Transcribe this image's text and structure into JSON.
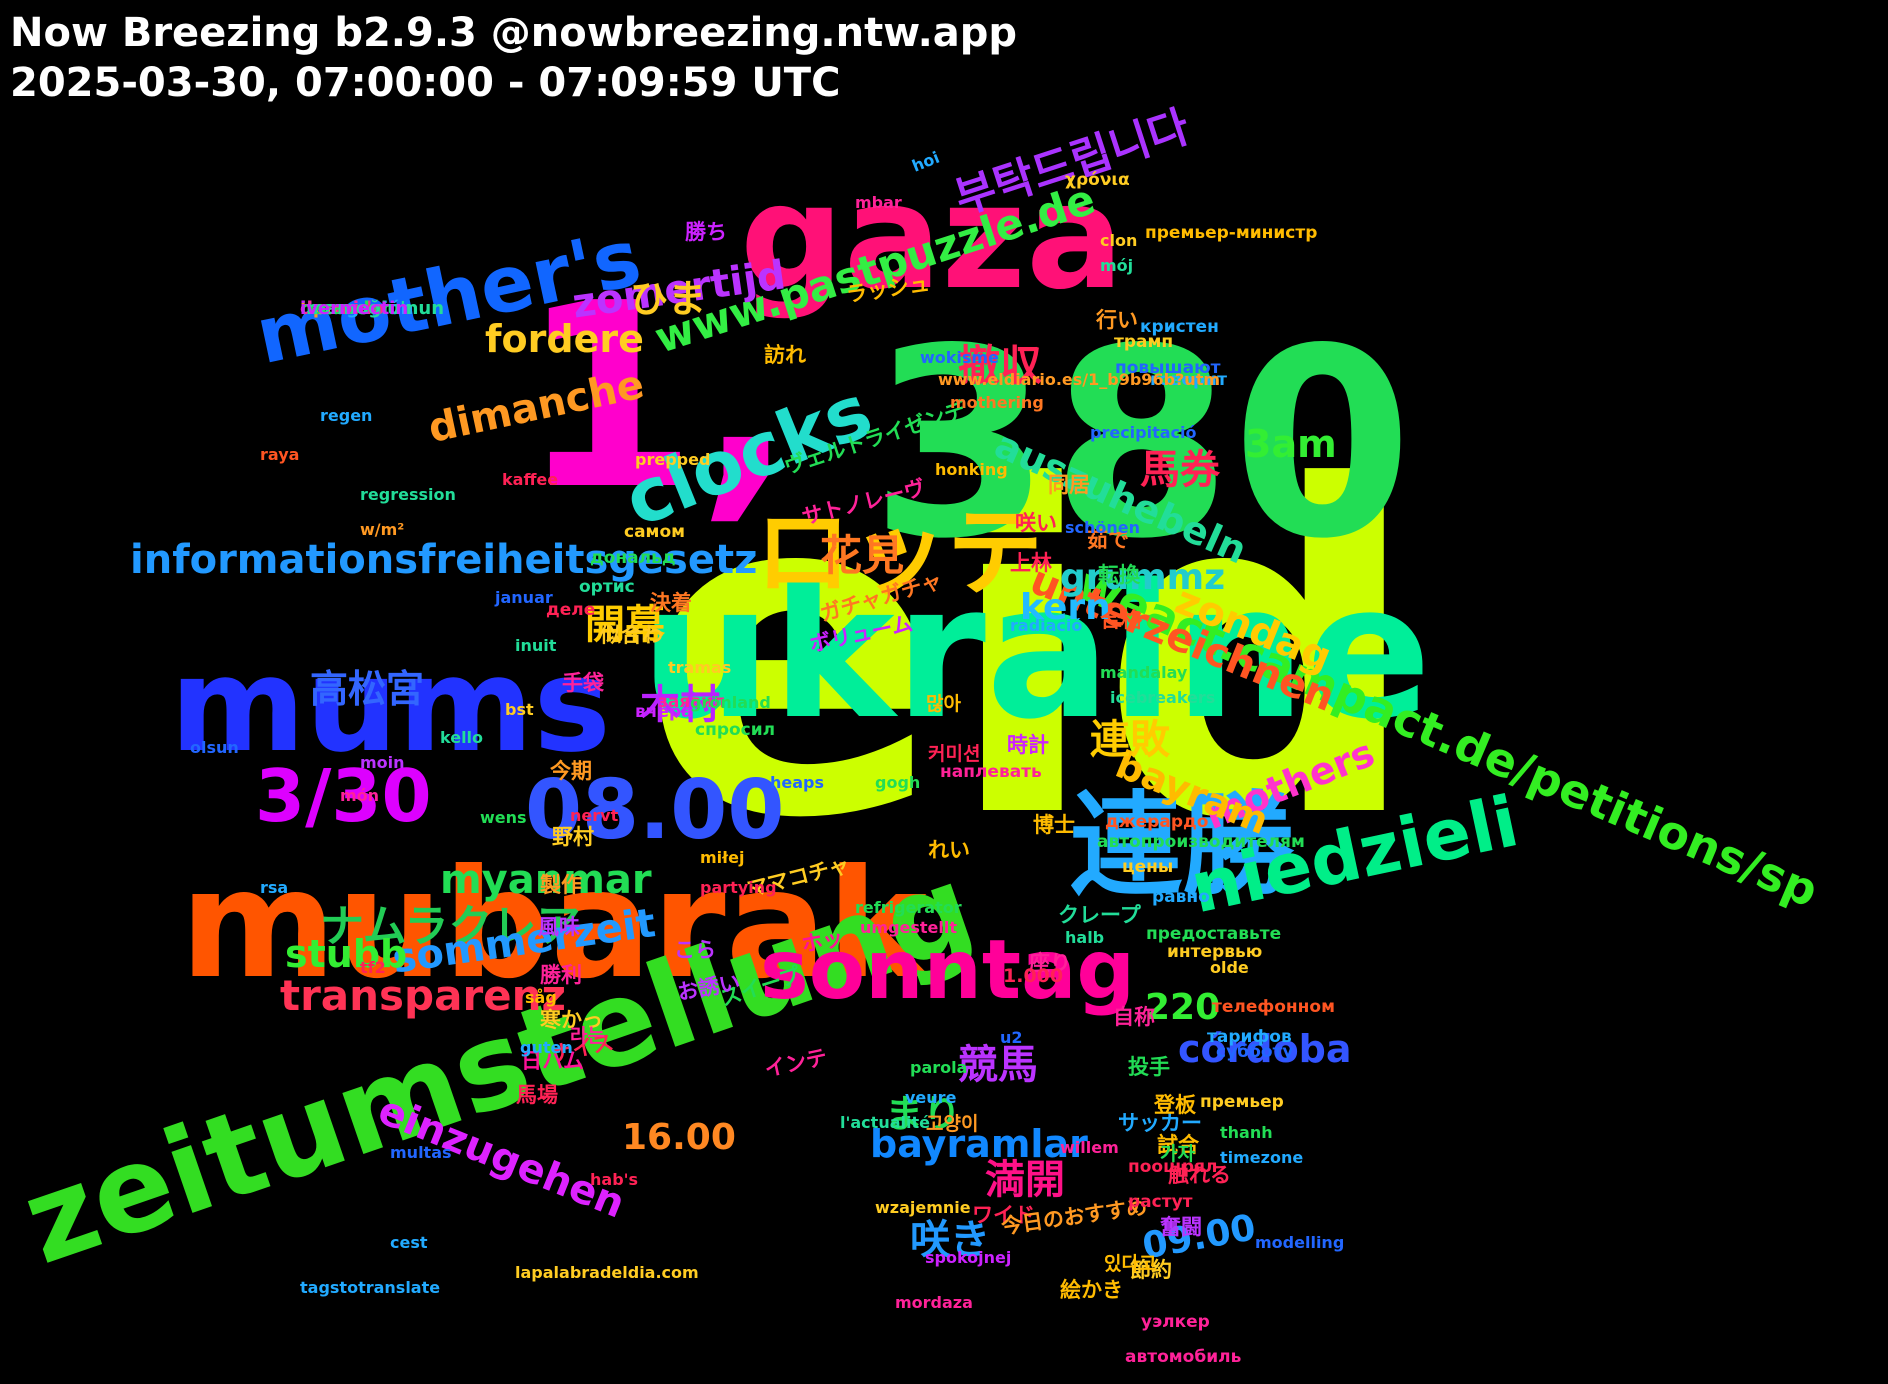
{
  "header": {
    "title": "Now Breezing b2.9.3 @nowbreezing.ntw.app",
    "range": "2025-03-30, 07:00:00 - 07:09:59 UTC"
  },
  "words": [
    {
      "t": "eid",
      "c": "#ccff00"
    },
    {
      "t": "380",
      "c": "#22dd55"
    },
    {
      "t": "1,",
      "c": "#ff00cc"
    },
    {
      "t": "ukraine",
      "c": "#00ee99"
    },
    {
      "t": "mubarak",
      "c": "#ff5500"
    },
    {
      "t": "mums",
      "c": "#2233ff"
    },
    {
      "t": "gaza",
      "c": "#ff1177"
    },
    {
      "t": "zeitumstellung",
      "c": "#33dd22"
    },
    {
      "t": "連勝",
      "c": "#22aaff"
    },
    {
      "t": "ロッテ",
      "c": "#ffcc00"
    },
    {
      "t": "sonntag",
      "c": "#ff0099"
    },
    {
      "t": "mother's",
      "c": "#1166ff"
    },
    {
      "t": "08.00",
      "c": "#3355ff"
    },
    {
      "t": "3/30",
      "c": "#dd00ff"
    },
    {
      "t": "clocks",
      "c": "#22ddcc"
    },
    {
      "t": "niedzieli",
      "c": "#00ee88"
    },
    {
      "t": "weact.campact.de/petitions/sp",
      "c": "#33ee22"
    },
    {
      "t": "www.pastpuzzle.de",
      "c": "#33ee44"
    },
    {
      "t": "부탁드립니다",
      "c": "#aa33ff"
    },
    {
      "t": "informationsfreiheitsgesetz",
      "c": "#2299ff"
    },
    {
      "t": "ナムラクレア",
      "c": "#22cc55"
    },
    {
      "t": "transparenz",
      "c": "#ff3355"
    },
    {
      "t": "sommerzeit",
      "c": "#2299ff"
    },
    {
      "t": "myanmar",
      "c": "#22dd55"
    },
    {
      "t": "unterzeichnen",
      "c": "#ff5522"
    },
    {
      "t": "einzugehen",
      "c": "#dd22ff"
    },
    {
      "t": "zondag",
      "c": "#ffcc00"
    },
    {
      "t": "bayramlar",
      "c": "#1188ff"
    },
    {
      "t": "dimanche",
      "c": "#ff9922"
    },
    {
      "t": "zomertijd",
      "c": "#bb33ff"
    },
    {
      "t": "fordere",
      "c": "#ffcc22"
    },
    {
      "t": "ひま",
      "c": "#ffcc22"
    },
    {
      "t": "auszuhebeln",
      "c": "#22dd99"
    },
    {
      "t": "grummz",
      "c": "#22cccc"
    },
    {
      "t": "mothers",
      "c": "#ff33cc"
    },
    {
      "t": "bayram",
      "c": "#ffbb00"
    },
    {
      "t": "córdoba",
      "c": "#3355ff"
    },
    {
      "t": "stubb",
      "c": "#33ee33"
    },
    {
      "t": "kern",
      "c": "#22bbff"
    },
    {
      "t": "3am",
      "c": "#33ee33"
    },
    {
      "t": "220",
      "c": "#33ee33"
    },
    {
      "t": "16.00",
      "c": "#ff8822"
    },
    {
      "t": "09.00",
      "c": "#2299ff"
    },
    {
      "t": "撤収",
      "c": "#ff2255"
    },
    {
      "t": "花見",
      "c": "#ff7722"
    },
    {
      "t": "開幕",
      "c": "#ffcc00"
    },
    {
      "t": "高松宮",
      "c": "#3366ff"
    },
    {
      "t": "木村",
      "c": "#bb22ff"
    },
    {
      "t": "連敗",
      "c": "#ffcc00"
    },
    {
      "t": "馬券",
      "c": "#ff2255"
    },
    {
      "t": "競馬",
      "c": "#bb33ff"
    },
    {
      "t": "まり",
      "c": "#22dd55"
    },
    {
      "t": "満開",
      "c": "#ff1188"
    },
    {
      "t": "咲き",
      "c": "#2299ff"
    },
    {
      "t": "ヴェルトライゼンデ",
      "c": "#22dd55"
    },
    {
      "t": "サトノレーヴ",
      "c": "#ff2299"
    },
    {
      "t": "ガチャガチャ",
      "c": "#ff7722"
    },
    {
      "t": "ボリューム",
      "c": "#cc22ff"
    },
    {
      "t": "ママコチャ",
      "c": "#ffcc22"
    },
    {
      "t": "クレープ",
      "c": "#22dd99"
    },
    {
      "t": "スイープ",
      "c": "#22dd55"
    },
    {
      "t": "ナイス",
      "c": "#ff2255"
    },
    {
      "t": "インテ",
      "c": "#ff2299"
    },
    {
      "t": "ラッシュ",
      "c": "#ffbb00"
    },
    {
      "t": "ホッ",
      "c": "#ff1199"
    },
    {
      "t": "こら",
      "c": "#bb33ff"
    },
    {
      "t": "お誘い",
      "c": "#bb33ff"
    },
    {
      "t": "れい",
      "c": "#ffbb00"
    },
    {
      "t": "ワイド",
      "c": "#ff2255"
    },
    {
      "t": "サッカー",
      "c": "#22aaff"
    },
    {
      "t": "今日のおすすめ",
      "c": "#ff9922"
    },
    {
      "t": "勝ち",
      "c": "#cc22ff"
    },
    {
      "t": "訪れ",
      "c": "#ffbb00"
    },
    {
      "t": "同居",
      "c": "#ff9922"
    },
    {
      "t": "咲い",
      "c": "#ff2255"
    },
    {
      "t": "上林",
      "c": "#ff2255"
    },
    {
      "t": "決着",
      "c": "#ff7722"
    },
    {
      "t": "手袋",
      "c": "#ff2299"
    },
    {
      "t": "今期",
      "c": "#ff9922"
    },
    {
      "t": "野村",
      "c": "#ffcc22"
    },
    {
      "t": "製作",
      "c": "#ff9922"
    },
    {
      "t": "風味",
      "c": "#bb33ff"
    },
    {
      "t": "勝利",
      "c": "#ff2299"
    },
    {
      "t": "寒かっ",
      "c": "#ffcc22"
    },
    {
      "t": "日ハム",
      "c": "#ff1199"
    },
    {
      "t": "馬場",
      "c": "#ff2255"
    },
    {
      "t": "座り",
      "c": "#ff2299"
    },
    {
      "t": "博士",
      "c": "#ffbb00"
    },
    {
      "t": "時計",
      "c": "#cc22ff"
    },
    {
      "t": "合格",
      "c": "#ff5522"
    },
    {
      "t": "茹で",
      "c": "#ff7722"
    },
    {
      "t": "転換",
      "c": "#22dd55"
    },
    {
      "t": "行い",
      "c": "#ff9922"
    },
    {
      "t": "自称",
      "c": "#ff2299"
    },
    {
      "t": "投手",
      "c": "#22dd55"
    },
    {
      "t": "登板",
      "c": "#ffbb00"
    },
    {
      "t": "試合",
      "c": "#ffbb00"
    },
    {
      "t": "触れる",
      "c": "#ff2255"
    },
    {
      "t": "奮闘",
      "c": "#bb33ff"
    },
    {
      "t": "節約",
      "c": "#ffcc22"
    },
    {
      "t": "絵かき",
      "c": "#ffbb00"
    },
    {
      "t": "似合わ",
      "c": "#ffcc22"
    },
    {
      "t": "많아",
      "c": "#ffbb00"
    },
    {
      "t": "커미션",
      "c": "#ff2255"
    },
    {
      "t": "고양이",
      "c": "#ff9922"
    },
    {
      "t": "가자",
      "c": "#22dd55"
    },
    {
      "t": "있다고",
      "c": "#ffbb00"
    },
    {
      "t": "라는",
      "c": "#ff2299"
    },
    {
      "t": "1.000",
      "c": "#ff2255"
    },
    {
      "t": "χρόνια",
      "c": "#ffcc22"
    },
    {
      "t": "премьер-министр",
      "c": "#ffbb00"
    },
    {
      "t": "повышают",
      "c": "#2266ff"
    },
    {
      "t": "трамп",
      "c": "#ffcc22"
    },
    {
      "t": "кристен",
      "c": "#22aaff"
    },
    {
      "t": "говорит",
      "c": "#22aaff"
    },
    {
      "t": "самом",
      "c": "#ffcc22"
    },
    {
      "t": "дональд",
      "c": "#22dd55"
    },
    {
      "t": "ортис",
      "c": "#22dd99"
    },
    {
      "t": "деле",
      "c": "#ff2255"
    },
    {
      "t": "заявил",
      "c": "#ff2299"
    },
    {
      "t": "вчера",
      "c": "#cc22ff"
    },
    {
      "t": "спросил",
      "c": "#22dd55"
    },
    {
      "t": "наплевать",
      "c": "#ff2299"
    },
    {
      "t": "джерардо",
      "c": "#ff5522"
    },
    {
      "t": "автопроизводителям",
      "c": "#22dd55"
    },
    {
      "t": "цены",
      "c": "#ffcc22"
    },
    {
      "t": "равно",
      "c": "#22aaff"
    },
    {
      "t": "предоставьте",
      "c": "#22dd55"
    },
    {
      "t": "интервью",
      "c": "#ffcc22"
    },
    {
      "t": "телефонном",
      "c": "#ff5522"
    },
    {
      "t": "тарифов",
      "c": "#22aaff"
    },
    {
      "t": "субботу",
      "c": "#2266ff"
    },
    {
      "t": "премьер",
      "c": "#ffcc22"
    },
    {
      "t": "поощрял",
      "c": "#ff2255"
    },
    {
      "t": "растут",
      "c": "#ff2255"
    },
    {
      "t": "уэлкер",
      "c": "#ff2299"
    },
    {
      "t": "автомобиль",
      "c": "#ff2299"
    },
    {
      "t": "derogación",
      "c": "#22aaff"
    },
    {
      "t": "dormido",
      "c": "#ff2299"
    },
    {
      "t": "hpa",
      "c": "#ff9922"
    },
    {
      "t": "recaudar",
      "c": "#22dd55"
    },
    {
      "t": "i̇mamoğlu'nun",
      "c": "#22dd99"
    },
    {
      "t": "ivermectin",
      "c": "#cc22ff"
    },
    {
      "t": "hoi",
      "c": "#22aaff"
    },
    {
      "t": "mbar",
      "c": "#ff2299"
    },
    {
      "t": "clon",
      "c": "#ffcc22"
    },
    {
      "t": "mój",
      "c": "#22dd99"
    },
    {
      "t": "wokisme",
      "c": "#2266ff"
    },
    {
      "t": "www.eldiario.es/1_b9b96b?utm",
      "c": "#ff9922"
    },
    {
      "t": "mothering",
      "c": "#ff7722"
    },
    {
      "t": "regen",
      "c": "#22aaff"
    },
    {
      "t": "precipitació",
      "c": "#2266ff"
    },
    {
      "t": "raya",
      "c": "#ff5522"
    },
    {
      "t": "prepped",
      "c": "#ffcc22"
    },
    {
      "t": "kaffee",
      "c": "#ff2255"
    },
    {
      "t": "regression",
      "c": "#22dd99"
    },
    {
      "t": "honking",
      "c": "#ffbb00"
    },
    {
      "t": "w/m²",
      "c": "#ff9922"
    },
    {
      "t": "schönen",
      "c": "#2266ff"
    },
    {
      "t": "januar",
      "c": "#2266ff"
    },
    {
      "t": "radiació",
      "c": "#22aaff"
    },
    {
      "t": "inuit",
      "c": "#22dd99"
    },
    {
      "t": "tramas",
      "c": "#ffcc22"
    },
    {
      "t": "mandalay",
      "c": "#22dd55"
    },
    {
      "t": "icebreakers",
      "c": "#22dd99"
    },
    {
      "t": "grönland",
      "c": "#22dd55"
    },
    {
      "t": "bst",
      "c": "#ffcc22"
    },
    {
      "t": "kello",
      "c": "#22dd99"
    },
    {
      "t": "olsun",
      "c": "#2266ff"
    },
    {
      "t": "món",
      "c": "#ff2299"
    },
    {
      "t": "moin",
      "c": "#bb33ff"
    },
    {
      "t": "gogh",
      "c": "#22dd55"
    },
    {
      "t": "heaps",
      "c": "#2266ff"
    },
    {
      "t": "nervt",
      "c": "#ff2255"
    },
    {
      "t": "wens",
      "c": "#22dd55"
    },
    {
      "t": "rsa",
      "c": "#22aaff"
    },
    {
      "t": "miłej",
      "c": "#ffbb00"
    },
    {
      "t": "partying",
      "c": "#ff2255"
    },
    {
      "t": "refrigerator",
      "c": "#22dd55"
    },
    {
      "t": "umgestellt",
      "c": "#ff2299"
    },
    {
      "t": "halb",
      "c": "#22dd99"
    },
    {
      "t": "tf2",
      "c": "#ff2255"
    },
    {
      "t": "olde",
      "c": "#ffcc22"
    },
    {
      "t": "såg",
      "c": "#ffbb00"
    },
    {
      "t": "u2",
      "c": "#2266ff"
    },
    {
      "t": "guten",
      "c": "#22aaff"
    },
    {
      "t": "parola",
      "c": "#22dd55"
    },
    {
      "t": "veure",
      "c": "#22aaff"
    },
    {
      "t": "thanh",
      "c": "#22dd55"
    },
    {
      "t": "l'actualité",
      "c": "#22dd99"
    },
    {
      "t": "willem",
      "c": "#ff2299"
    },
    {
      "t": "multas",
      "c": "#2266ff"
    },
    {
      "t": "timezone",
      "c": "#22aaff"
    },
    {
      "t": "hab's",
      "c": "#ff2255"
    },
    {
      "t": "wzajemnie",
      "c": "#ffcc22"
    },
    {
      "t": "modelling",
      "c": "#2266ff"
    },
    {
      "t": "cest",
      "c": "#22aaff"
    },
    {
      "t": "spokojnej",
      "c": "#cc22ff"
    },
    {
      "t": "mordaza",
      "c": "#ff2299"
    },
    {
      "t": "lapalabradeldia.com",
      "c": "#ffcc22"
    },
    {
      "t": "tagstotranslate",
      "c": "#22aaff"
    }
  ]
}
